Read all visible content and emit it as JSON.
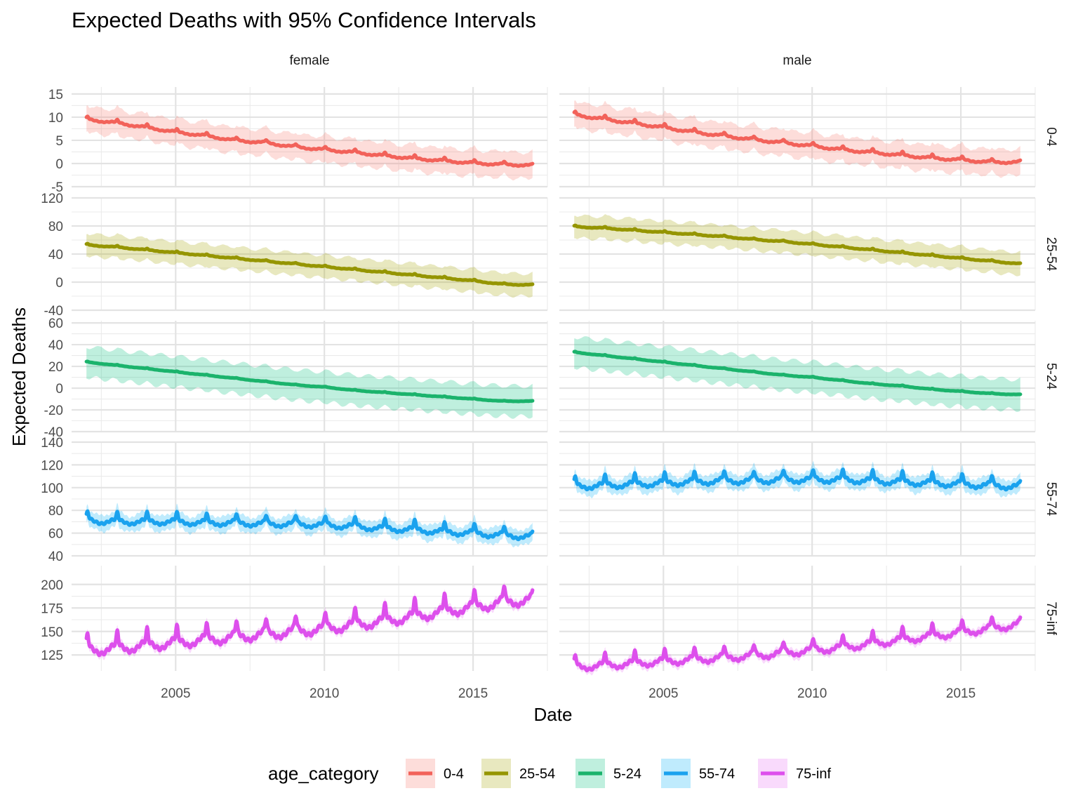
{
  "chart_data": {
    "type": "line",
    "title": "Expected Deaths with 95% Confidence Intervals",
    "xlabel": "Date",
    "ylabel": "Expected Deaths",
    "xlim": [
      2001.5,
      2017.5
    ],
    "x_ticks": [
      2005,
      2010,
      2015
    ],
    "x_tick_labels": [
      "2005",
      "2010",
      "2015"
    ],
    "grid": true,
    "legend": {
      "title": "age_category",
      "placement": "bottom",
      "entries": [
        "0-4",
        "25-54",
        "5-24",
        "55-74",
        "75-inf"
      ]
    },
    "facet_columns": [
      "female",
      "male"
    ],
    "facet_rows": [
      {
        "label": "0-4",
        "ylim": [
          -5,
          16.5
        ],
        "ticks": [
          -5,
          0,
          5,
          10,
          15
        ],
        "tick_labels": [
          "-5",
          "0",
          "5",
          "10",
          "15"
        ]
      },
      {
        "label": "25-54",
        "ylim": [
          -40,
          120
        ],
        "ticks": [
          -40,
          0,
          40,
          80,
          120
        ],
        "tick_labels": [
          "-40",
          "0",
          "40",
          "80",
          "120"
        ]
      },
      {
        "label": "5-24",
        "ylim": [
          -40,
          62
        ],
        "ticks": [
          -40,
          -20,
          0,
          20,
          40,
          60
        ],
        "tick_labels": [
          "-40",
          "-20",
          "0",
          "20",
          "40",
          "60"
        ]
      },
      {
        "label": "55-74",
        "ylim": [
          40,
          140
        ],
        "ticks": [
          40,
          60,
          80,
          100,
          120,
          140
        ],
        "tick_labels": [
          "40",
          "60",
          "80",
          "100",
          "120",
          "140"
        ]
      },
      {
        "label": "75-inf",
        "ylim": [
          108,
          220
        ],
        "ticks": [
          125,
          150,
          175,
          200
        ],
        "tick_labels": [
          "125",
          "150",
          "175",
          "200"
        ]
      }
    ],
    "colors": {
      "0-4": "#F8766D",
      "25-54": "#A3A500",
      "5-24": "#00BF7D",
      "55-74": "#00B0F6",
      "75-inf": "#E76BF3"
    },
    "line_colors": {
      "0-4": "#F2625A",
      "25-54": "#959500",
      "5-24": "#1BB36C",
      "55-74": "#1AA2EE",
      "75-inf": "#DD4FEC"
    },
    "ci_half_width": {
      "0-4": 2.8,
      "25-54": 16,
      "5-24": 14,
      "55-74": 7,
      "75-inf": 5
    },
    "series": [
      {
        "sex": "female",
        "age": "0-4",
        "x": [
          2002,
          2003,
          2004,
          2005,
          2006,
          2007,
          2008,
          2009,
          2010,
          2011,
          2012,
          2013,
          2014,
          2015,
          2016,
          2017
        ],
        "y": [
          9.5,
          8.8,
          7.8,
          6.8,
          6.0,
          5.0,
          4.5,
          3.6,
          3.0,
          2.4,
          1.7,
          1.1,
          0.6,
          0.1,
          -0.2,
          -0.4
        ],
        "seasonal_amplitude": 0.9
      },
      {
        "sex": "male",
        "age": "0-4",
        "x": [
          2002,
          2003,
          2004,
          2005,
          2006,
          2007,
          2008,
          2009,
          2010,
          2011,
          2012,
          2013,
          2014,
          2015,
          2016,
          2017
        ],
        "y": [
          10.5,
          9.6,
          8.7,
          7.8,
          6.8,
          6.0,
          5.2,
          4.5,
          3.8,
          3.0,
          2.4,
          1.8,
          1.2,
          0.8,
          0.3,
          0.3
        ],
        "seasonal_amplitude": 1.0
      },
      {
        "sex": "female",
        "age": "25-54",
        "x": [
          2002,
          2003,
          2004,
          2005,
          2006,
          2007,
          2008,
          2009,
          2010,
          2011,
          2012,
          2013,
          2014,
          2015,
          2016,
          2017
        ],
        "y": [
          53,
          50,
          46,
          42,
          38,
          34,
          30,
          26,
          22,
          18,
          14,
          10,
          6,
          2,
          -3,
          -4
        ],
        "seasonal_amplitude": 2.5
      },
      {
        "sex": "male",
        "age": "25-54",
        "x": [
          2002,
          2003,
          2004,
          2005,
          2006,
          2007,
          2008,
          2009,
          2010,
          2011,
          2012,
          2013,
          2014,
          2015,
          2016,
          2017
        ],
        "y": [
          79,
          77,
          74,
          71,
          68,
          65,
          61,
          58,
          54,
          50,
          46,
          42,
          38,
          34,
          30,
          26
        ],
        "seasonal_amplitude": 2.5
      },
      {
        "sex": "female",
        "age": "5-24",
        "x": [
          2002,
          2003,
          2004,
          2005,
          2006,
          2007,
          2008,
          2009,
          2010,
          2011,
          2012,
          2013,
          2014,
          2015,
          2016,
          2017
        ],
        "y": [
          24,
          21,
          18,
          15,
          12,
          9,
          6,
          3,
          1,
          -2,
          -4,
          -6,
          -8,
          -10,
          -12,
          -12
        ],
        "seasonal_amplitude": 0.8
      },
      {
        "sex": "male",
        "age": "5-24",
        "x": [
          2002,
          2003,
          2004,
          2005,
          2006,
          2007,
          2008,
          2009,
          2010,
          2011,
          2012,
          2013,
          2014,
          2015,
          2016,
          2017
        ],
        "y": [
          33,
          30,
          27,
          24,
          21,
          18,
          15,
          12,
          10,
          7,
          4,
          2,
          -1,
          -3,
          -5,
          -6
        ],
        "seasonal_amplitude": 0.9
      },
      {
        "sex": "female",
        "age": "55-74",
        "x": [
          2002,
          2003,
          2004,
          2005,
          2006,
          2007,
          2008,
          2009,
          2010,
          2011,
          2012,
          2013,
          2014,
          2015,
          2016,
          2017
        ],
        "y": [
          71,
          70,
          70,
          70,
          69,
          69,
          68,
          68,
          67,
          66,
          64,
          63,
          61,
          60,
          58,
          57
        ],
        "seasonal_amplitude": 11
      },
      {
        "sex": "male",
        "age": "55-74",
        "x": [
          2002,
          2003,
          2004,
          2005,
          2006,
          2007,
          2008,
          2009,
          2010,
          2011,
          2012,
          2013,
          2014,
          2015,
          2016,
          2017
        ],
        "y": [
          101,
          102,
          103,
          104,
          105,
          106,
          106,
          107,
          107,
          107,
          106,
          105,
          104,
          103,
          102,
          101
        ],
        "seasonal_amplitude": 12
      },
      {
        "sex": "female",
        "age": "75-inf",
        "x": [
          2002,
          2003,
          2004,
          2005,
          2006,
          2007,
          2008,
          2009,
          2010,
          2011,
          2012,
          2013,
          2014,
          2015,
          2016,
          2017
        ],
        "y": [
          130,
          132,
          135,
          138,
          141,
          144,
          147,
          150,
          153,
          157,
          161,
          166,
          171,
          176,
          181,
          184
        ],
        "seasonal_amplitude": 24
      },
      {
        "sex": "male",
        "age": "75-inf",
        "x": [
          2002,
          2003,
          2004,
          2005,
          2006,
          2007,
          2008,
          2009,
          2010,
          2011,
          2012,
          2013,
          2014,
          2015,
          2016,
          2017
        ],
        "y": [
          112,
          114,
          116,
          118,
          120,
          122,
          124,
          127,
          130,
          133,
          137,
          141,
          145,
          149,
          153,
          158
        ],
        "seasonal_amplitude": 17
      }
    ]
  }
}
